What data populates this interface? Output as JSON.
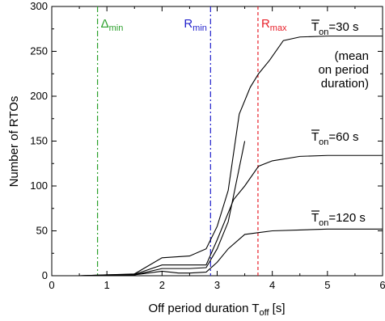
{
  "chart_data": {
    "type": "line",
    "xlabel": "Off period duration T",
    "xlabel_sub": "off",
    "xlabel_unit": " [s]",
    "ylabel": "Number of RTOs",
    "xlim": [
      0,
      6
    ],
    "ylim": [
      0,
      300
    ],
    "xticks": [
      "0",
      "1",
      "2",
      "3",
      "4",
      "5",
      "6"
    ],
    "yticks": [
      "0",
      "50",
      "100",
      "150",
      "200",
      "250",
      "300"
    ],
    "grid": false,
    "series": [
      {
        "main": "T",
        "sub": "on",
        "suffix": "=30 s",
        "color": "#000000",
        "upper_x": [
          0,
          0.5,
          1.0,
          1.5,
          2.0,
          2.5,
          2.8,
          3.0,
          3.2,
          3.4,
          3.6,
          3.75,
          3.95,
          4.2,
          4.5,
          5.0,
          5.5,
          6.0
        ],
        "upper_y": [
          0,
          0,
          1,
          2,
          20,
          22,
          30,
          55,
          95,
          180,
          210,
          225,
          240,
          262,
          266,
          267,
          267,
          267
        ],
        "lower_x": [
          0,
          0.5,
          1.0,
          1.5,
          2.0,
          2.5,
          2.8,
          3.0,
          3.2,
          3.5
        ],
        "lower_y": [
          0,
          0,
          0.5,
          1,
          8,
          8,
          9,
          30,
          60,
          150
        ]
      },
      {
        "main": "T",
        "sub": "on",
        "suffix": "=60 s",
        "color": "#000000",
        "upper_x": [
          0,
          0.5,
          1.0,
          1.5,
          2.0,
          2.5,
          2.8,
          3.0,
          3.3,
          3.5,
          3.75,
          4.0,
          4.5,
          5.0,
          6.0
        ],
        "upper_y": [
          0,
          0,
          1,
          1.5,
          12,
          12,
          12,
          40,
          85,
          100,
          122,
          128,
          133,
          134,
          134
        ]
      },
      {
        "main": "T",
        "sub": "on",
        "suffix": "=120 s",
        "color": "#000000",
        "upper_x": [
          0,
          0.5,
          1.0,
          1.5,
          2.0,
          2.3,
          2.5,
          2.8,
          3.0,
          3.2,
          3.5,
          3.75,
          4.0,
          4.5,
          5.0,
          6.0
        ],
        "upper_y": [
          0,
          0,
          0.5,
          1,
          5,
          3,
          3,
          4,
          15,
          30,
          46,
          48,
          50,
          51,
          52,
          52
        ]
      }
    ],
    "vlines": [
      {
        "label_main": "Δ",
        "label_sub": "min",
        "x": 0.83,
        "color": "#2ca02c",
        "style": "dash-dot"
      },
      {
        "label_main": "R",
        "label_sub": "min",
        "x": 2.88,
        "color": "#2222cc",
        "style": "dash-dot"
      },
      {
        "label_main": "R",
        "label_sub": "max",
        "x": 3.74,
        "color": "#e8202a",
        "style": "dashed"
      }
    ],
    "annotation": [
      "(mean",
      "on period",
      "duration)"
    ]
  }
}
